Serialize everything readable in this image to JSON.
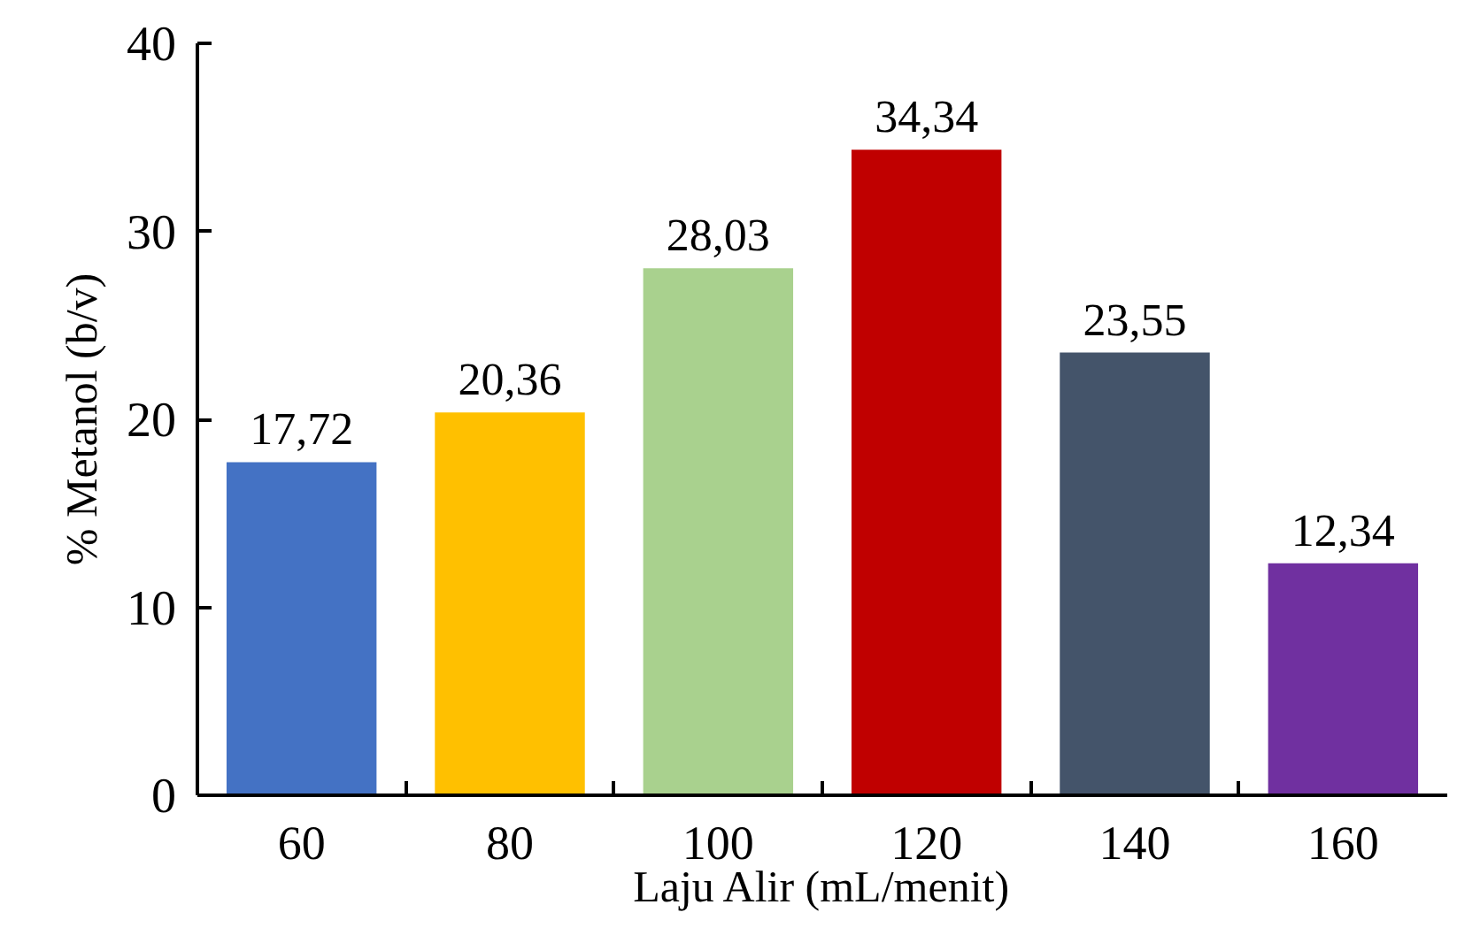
{
  "chart_data": {
    "type": "bar",
    "xlabel": "Laju Alir (mL/menit)",
    "ylabel": "% Metanol (b/v)",
    "categories": [
      "60",
      "80",
      "100",
      "120",
      "140",
      "160"
    ],
    "values": [
      17.72,
      20.36,
      28.03,
      34.34,
      23.55,
      12.34
    ],
    "colors": [
      "#4472c4",
      "#ffc000",
      "#a9d18e",
      "#c00000",
      "#44546a",
      "#7030a0"
    ],
    "value_labels": [
      "17,72",
      "20,36",
      "28,03",
      "34,34",
      "23,55",
      "12,34"
    ],
    "ylim": [
      0,
      40
    ],
    "yticks": [
      0,
      10,
      20,
      30,
      40
    ]
  }
}
